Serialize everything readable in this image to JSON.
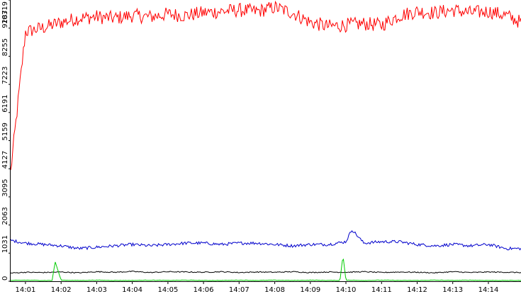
{
  "chart_data": {
    "type": "line",
    "title": "",
    "xlabel": "",
    "ylabel": "",
    "grid": false,
    "legend": "none",
    "xlim": [
      "14:00:35",
      "14:14:55"
    ],
    "ylim": [
      0,
      10319
    ],
    "x_ticks": [
      {
        "time": "14:01:00",
        "label": "14:01"
      },
      {
        "time": "14:02:00",
        "label": "14:02"
      },
      {
        "time": "14:03:00",
        "label": "14:03"
      },
      {
        "time": "14:04:00",
        "label": "14:04"
      },
      {
        "time": "14:05:00",
        "label": "14:05"
      },
      {
        "time": "14:06:00",
        "label": "14:06"
      },
      {
        "time": "14:07:00",
        "label": "14:07"
      },
      {
        "time": "14:08:00",
        "label": "14:08"
      },
      {
        "time": "14:09:00",
        "label": "14:09"
      },
      {
        "time": "14:10:00",
        "label": "14:10"
      },
      {
        "time": "14:11:00",
        "label": "14:11"
      },
      {
        "time": "14:12:00",
        "label": "14:12"
      },
      {
        "time": "14:13:00",
        "label": "14:13"
      },
      {
        "time": "14:14:00",
        "label": "14:14"
      }
    ],
    "y_ticks": [
      {
        "value": 0,
        "label": "0"
      },
      {
        "value": 1031,
        "label": "1031"
      },
      {
        "value": 2063,
        "label": "2063"
      },
      {
        "value": 3095,
        "label": "3095"
      },
      {
        "value": 4127,
        "label": "4127"
      },
      {
        "value": 5159,
        "label": "5159"
      },
      {
        "value": 6191,
        "label": "6191"
      },
      {
        "value": 7223,
        "label": "7223"
      },
      {
        "value": 8255,
        "label": "8255"
      },
      {
        "value": 9287,
        "label": "9287"
      },
      {
        "value": 10319,
        "label": "10319"
      }
    ],
    "series": [
      {
        "color": "#ff0000",
        "x": [
          "14:00:35",
          "14:01:00",
          "14:01:30",
          "14:02:00",
          "14:02:30",
          "14:03:00",
          "14:03:30",
          "14:04:00",
          "14:04:30",
          "14:05:00",
          "14:05:30",
          "14:06:00",
          "14:06:30",
          "14:07:00",
          "14:07:30",
          "14:08:00",
          "14:08:30",
          "14:09:00",
          "14:09:30",
          "14:10:00",
          "14:10:30",
          "14:11:00",
          "14:11:30",
          "14:12:00",
          "14:12:30",
          "14:13:00",
          "14:13:30",
          "14:14:00",
          "14:14:30",
          "14:14:55"
        ],
        "values": [
          4000,
          9150,
          9300,
          9500,
          9650,
          9700,
          9650,
          9750,
          9700,
          9800,
          9750,
          9850,
          9900,
          9950,
          9900,
          10050,
          9850,
          9500,
          9350,
          9400,
          9450,
          9400,
          9750,
          9900,
          9850,
          9950,
          9850,
          9900,
          9750,
          9500
        ]
      },
      {
        "color": "#0000cc",
        "x": [
          "14:00:35",
          "14:01:00",
          "14:01:30",
          "14:02:00",
          "14:02:30",
          "14:03:00",
          "14:03:30",
          "14:04:00",
          "14:04:30",
          "14:05:00",
          "14:05:30",
          "14:06:00",
          "14:06:30",
          "14:07:00",
          "14:07:30",
          "14:08:00",
          "14:08:30",
          "14:09:00",
          "14:09:30",
          "14:10:00",
          "14:10:10",
          "14:10:30",
          "14:11:00",
          "14:11:30",
          "14:12:00",
          "14:12:30",
          "14:13:00",
          "14:13:30",
          "14:14:00",
          "14:14:30",
          "14:14:55"
        ],
        "values": [
          1500,
          1400,
          1350,
          1300,
          1200,
          1250,
          1300,
          1350,
          1300,
          1350,
          1400,
          1400,
          1350,
          1400,
          1400,
          1350,
          1300,
          1350,
          1350,
          1450,
          1900,
          1400,
          1450,
          1450,
          1350,
          1300,
          1350,
          1300,
          1350,
          1200,
          1200
        ]
      },
      {
        "color": "#000000",
        "x": [
          "14:00:35",
          "14:01:00",
          "14:01:30",
          "14:02:00",
          "14:02:30",
          "14:03:00",
          "14:03:30",
          "14:04:00",
          "14:04:30",
          "14:05:00",
          "14:05:30",
          "14:06:00",
          "14:06:30",
          "14:07:00",
          "14:07:30",
          "14:08:00",
          "14:08:30",
          "14:09:00",
          "14:09:30",
          "14:10:00",
          "14:10:30",
          "14:11:00",
          "14:11:30",
          "14:12:00",
          "14:12:30",
          "14:13:00",
          "14:13:30",
          "14:14:00",
          "14:14:30",
          "14:14:55"
        ],
        "values": [
          300,
          330,
          320,
          340,
          310,
          350,
          330,
          360,
          320,
          350,
          340,
          330,
          350,
          320,
          340,
          330,
          350,
          320,
          340,
          330,
          350,
          320,
          340,
          330,
          310,
          350,
          320,
          340,
          330,
          320
        ]
      },
      {
        "color": "#00cc00",
        "x": [
          "14:00:35",
          "14:01:00",
          "14:01:30",
          "14:01:45",
          "14:01:50",
          "14:02:00",
          "14:02:30",
          "14:03:00",
          "14:03:30",
          "14:04:00",
          "14:04:30",
          "14:05:00",
          "14:05:30",
          "14:06:00",
          "14:06:30",
          "14:07:00",
          "14:07:30",
          "14:08:00",
          "14:08:30",
          "14:09:00",
          "14:09:30",
          "14:09:50",
          "14:09:55",
          "14:10:00",
          "14:10:30",
          "14:11:00",
          "14:11:30",
          "14:12:00",
          "14:12:30",
          "14:13:00",
          "14:13:30",
          "14:14:00",
          "14:14:30",
          "14:14:55"
        ],
        "values": [
          30,
          40,
          30,
          30,
          720,
          40,
          30,
          40,
          30,
          30,
          40,
          30,
          40,
          30,
          30,
          40,
          30,
          40,
          30,
          40,
          30,
          30,
          950,
          40,
          30,
          40,
          30,
          30,
          40,
          30,
          40,
          30,
          30,
          30
        ]
      }
    ]
  }
}
